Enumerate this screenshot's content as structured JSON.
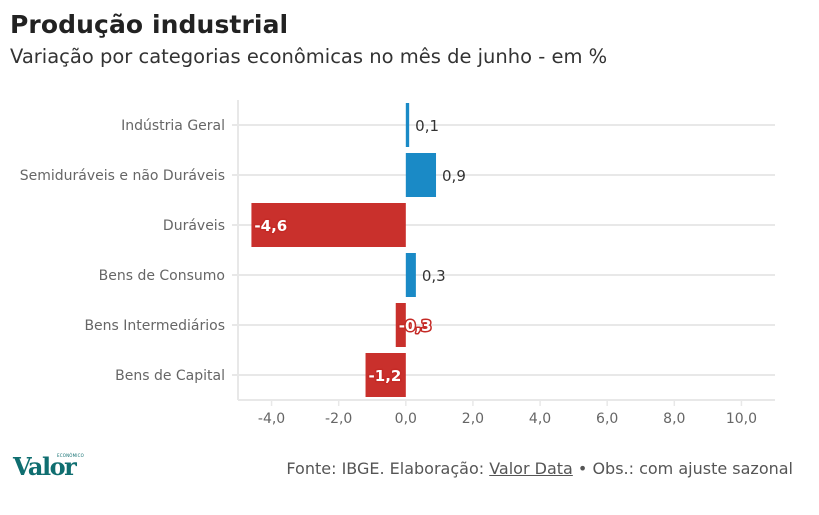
{
  "header": {
    "title": "Produção industrial",
    "subtitle": "Variação por categorias econômicas no mês de junho - em %"
  },
  "chart_data": {
    "type": "bar",
    "orientation": "horizontal",
    "title": "Produção industrial",
    "subtitle": "Variação por categorias econômicas no mês de junho - em %",
    "xlabel": "",
    "ylabel": "",
    "categories": [
      "Indústria Geral",
      "Semiduráveis e não Duráveis",
      "Duráveis",
      "Bens de Consumo",
      "Bens Intermediários",
      "Bens de Capital"
    ],
    "values": [
      0.1,
      0.9,
      -4.6,
      0.3,
      -0.3,
      -1.2
    ],
    "value_labels": [
      "0,1",
      "0,9",
      "-4,6",
      "0,3",
      "-0,3",
      "-1,2"
    ],
    "xlim": [
      -5,
      11
    ],
    "x_ticks": [
      -4,
      -2,
      0,
      2,
      4,
      6,
      8,
      10
    ],
    "x_tick_labels": [
      "-4,0",
      "-2,0",
      "0,0",
      "2,0",
      "4,0",
      "6,0",
      "8,0",
      "10,0"
    ],
    "grid": true,
    "colors": {
      "positive": "#1a8ac6",
      "negative": "#c9302c",
      "grid": "#e8e8e8"
    },
    "legend": "none"
  },
  "footer": {
    "logo_text": "Valor",
    "logo_small_text": "ECONÔMICO",
    "source_prefix": "Fonte: IBGE. Elaboração: ",
    "source_link": "Valor Data",
    "source_suffix": " • Obs.: com ajuste sazonal"
  }
}
